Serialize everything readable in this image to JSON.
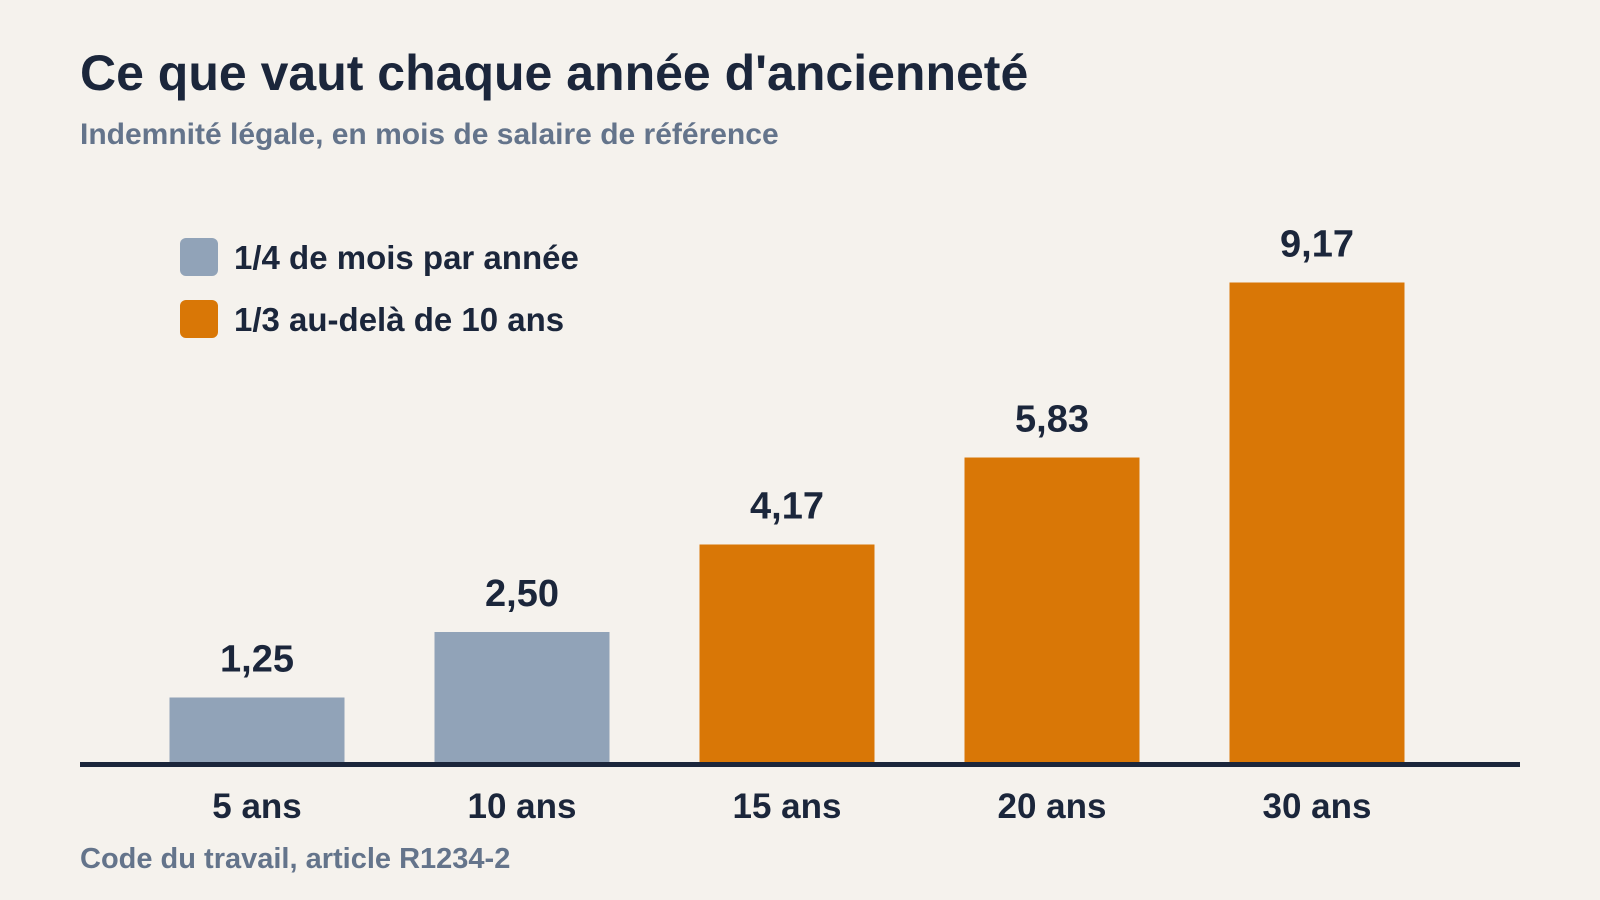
{
  "chart_data": {
    "type": "bar",
    "title": "Ce que vaut chaque année d'ancienneté",
    "subtitle": "Indemnité légale, en mois de salaire de référence",
    "source": "Code du travail, article R1234-2",
    "categories": [
      "5 ans",
      "10 ans",
      "15 ans",
      "20 ans",
      "30 ans"
    ],
    "values": [
      1.25,
      2.5,
      4.17,
      5.83,
      9.17
    ],
    "value_labels": [
      "1,25",
      "2,50",
      "4,17",
      "5,83",
      "9,17"
    ],
    "bar_groups": [
      0,
      0,
      1,
      1,
      1
    ],
    "legend": {
      "placement": "top-left",
      "items": [
        {
          "label": "1/4 de mois par année",
          "color": "#91a3b8"
        },
        {
          "label": "1/3 au-delà de 10 ans",
          "color": "#d97706"
        }
      ]
    },
    "ylim": [
      0,
      10
    ],
    "grid": false,
    "xlabel": "",
    "ylabel": "",
    "colors": {
      "axis": "#1b263b",
      "value_label": "#1b263b",
      "tick_label": "#1b263b"
    }
  }
}
